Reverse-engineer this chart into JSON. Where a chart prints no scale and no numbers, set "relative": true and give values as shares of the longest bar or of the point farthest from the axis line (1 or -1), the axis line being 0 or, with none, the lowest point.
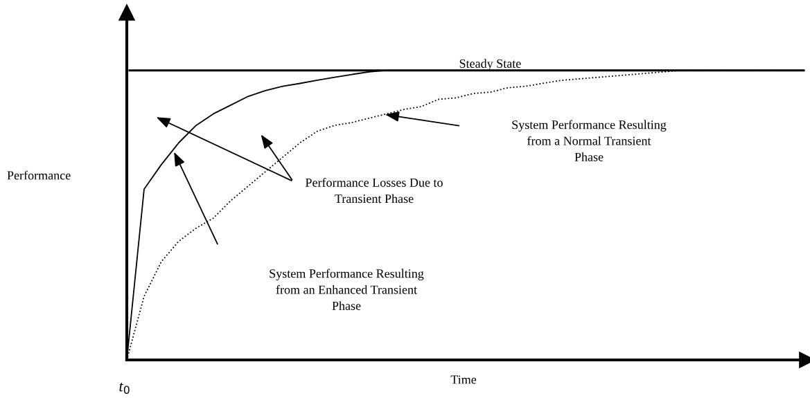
{
  "chart_data": {
    "type": "line",
    "relative": true,
    "xlabel": "Time",
    "ylabel": "Performance",
    "categories": [
      null,
      null,
      null,
      null,
      null,
      null,
      null,
      null,
      null,
      null,
      null,
      null,
      null,
      null,
      null,
      null,
      null,
      null,
      null,
      null,
      null,
      null,
      null,
      null,
      null,
      null,
      null,
      null,
      null,
      null,
      null,
      null,
      null,
      null,
      null,
      null,
      null,
      null,
      null,
      null
    ],
    "series": [
      {
        "color": "#000000",
        "line_style": "solid",
        "values": [
          0,
          0.59,
          0.675,
          0.75,
          0.81,
          0.85,
          0.88,
          0.91,
          0.93,
          0.945,
          0.955,
          0.966,
          0.976,
          0.986,
          0.995,
          1,
          1,
          1,
          1,
          1,
          1,
          1,
          1,
          1,
          1,
          1,
          1,
          1,
          1,
          1,
          1,
          1,
          1,
          1,
          1,
          1,
          1,
          1,
          1,
          1
        ]
      },
      {
        "color": "#000000",
        "line_style": "dotted",
        "values": [
          0,
          0.22,
          0.34,
          0.41,
          0.455,
          0.49,
          0.55,
          0.6,
          0.65,
          0.7,
          0.75,
          0.79,
          0.81,
          0.82,
          0.835,
          0.85,
          0.865,
          0.875,
          0.9,
          0.905,
          0.92,
          0.925,
          0.94,
          0.945,
          0.955,
          0.965,
          0.97,
          0.975,
          0.98,
          0.985,
          0.99,
          0.995,
          1,
          1,
          1,
          1,
          1,
          1,
          1,
          1
        ]
      }
    ],
    "ref_lines": [
      {
        "axis": "y",
        "value": 1,
        "label": "Steady State",
        "color": "#000000",
        "line_style": "solid"
      }
    ],
    "annotations": [
      "Performance Losses Due to\nTransient Phase",
      "System Performance Resulting\nfrom a Normal Transient\nPhase",
      "System Performance Resulting\nfrom an Enhanced Transient\nPhase",
      "t$_{0}$"
    ],
    "tick_labels": false
  }
}
